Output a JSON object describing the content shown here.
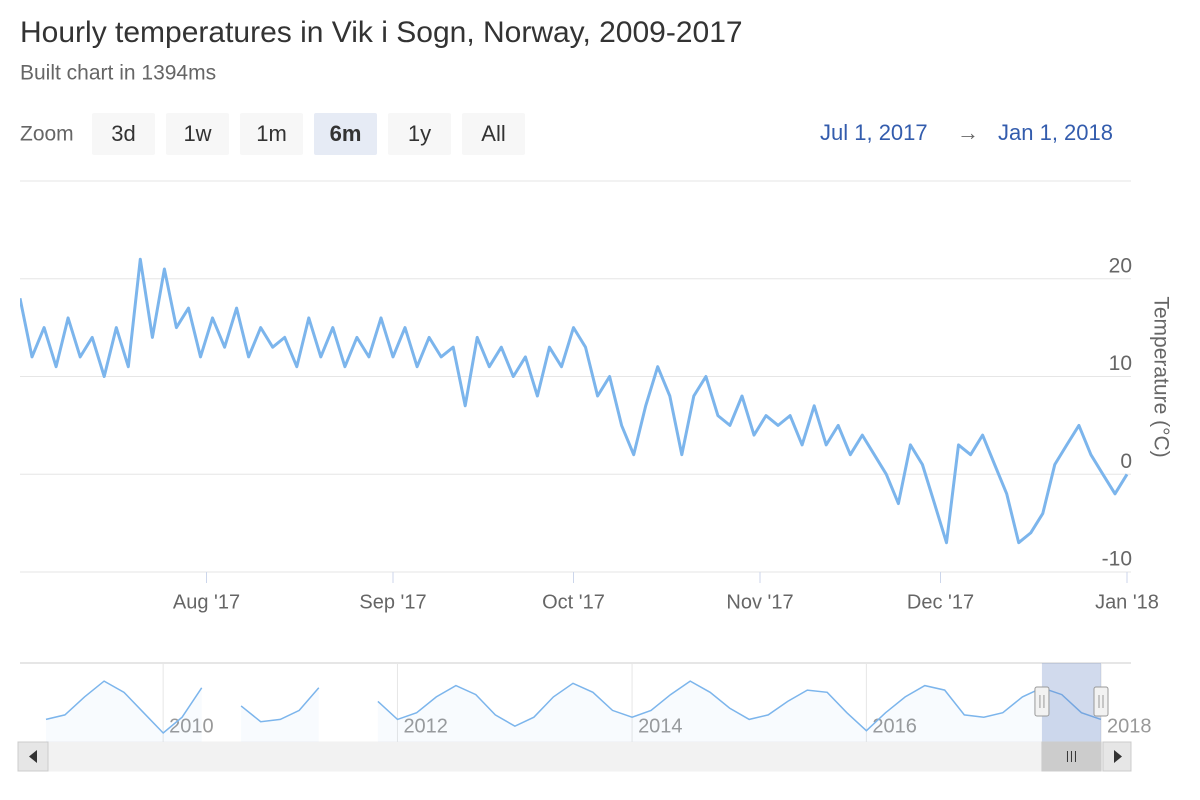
{
  "chart_data": {
    "type": "line",
    "title": "Hourly temperatures in Vik i Sogn, Norway, 2009-2017",
    "subtitle": "Built chart in 1394ms",
    "range_selector": {
      "label": "Zoom",
      "buttons": [
        "3d",
        "1w",
        "1m",
        "6m",
        "1y",
        "All"
      ],
      "selected": 3,
      "from": "Jul 1, 2017",
      "separator": "→",
      "to": "Jan 1, 2018"
    },
    "y_axis_title": "Temperature (°C)",
    "color": "#7cb5ec",
    "grid": true,
    "xlim": [
      "2017-07-01",
      "2018-01-01"
    ],
    "xticks": [
      {
        "value": "2017-08-01",
        "label": "Aug '17"
      },
      {
        "value": "2017-09-01",
        "label": "Sep '17"
      },
      {
        "value": "2017-10-01",
        "label": "Oct '17"
      },
      {
        "value": "2017-11-01",
        "label": "Nov '17"
      },
      {
        "value": "2017-12-01",
        "label": "Dec '17"
      },
      {
        "value": "2018-01-01",
        "label": "Jan '18"
      }
    ],
    "ylim": [
      -10,
      30
    ],
    "yticks": [
      -10,
      0,
      10,
      20
    ],
    "x": [
      "2017-07-01",
      "2017-07-03",
      "2017-07-05",
      "2017-07-07",
      "2017-07-09",
      "2017-07-11",
      "2017-07-13",
      "2017-07-15",
      "2017-07-17",
      "2017-07-19",
      "2017-07-21",
      "2017-07-23",
      "2017-07-25",
      "2017-07-27",
      "2017-07-29",
      "2017-07-31",
      "2017-08-02",
      "2017-08-04",
      "2017-08-06",
      "2017-08-08",
      "2017-08-10",
      "2017-08-12",
      "2017-08-14",
      "2017-08-16",
      "2017-08-18",
      "2017-08-20",
      "2017-08-22",
      "2017-08-24",
      "2017-08-26",
      "2017-08-28",
      "2017-08-30",
      "2017-09-01",
      "2017-09-03",
      "2017-09-05",
      "2017-09-07",
      "2017-09-09",
      "2017-09-11",
      "2017-09-13",
      "2017-09-15",
      "2017-09-17",
      "2017-09-19",
      "2017-09-21",
      "2017-09-23",
      "2017-09-25",
      "2017-09-27",
      "2017-09-29",
      "2017-10-01",
      "2017-10-03",
      "2017-10-05",
      "2017-10-07",
      "2017-10-09",
      "2017-10-11",
      "2017-10-13",
      "2017-10-15",
      "2017-10-17",
      "2017-10-19",
      "2017-10-21",
      "2017-10-23",
      "2017-10-25",
      "2017-10-27",
      "2017-10-29",
      "2017-10-31",
      "2017-11-02",
      "2017-11-04",
      "2017-11-06",
      "2017-11-08",
      "2017-11-10",
      "2017-11-12",
      "2017-11-14",
      "2017-11-16",
      "2017-11-18",
      "2017-11-20",
      "2017-11-22",
      "2017-11-24",
      "2017-11-26",
      "2017-11-28",
      "2017-11-30",
      "2017-12-02",
      "2017-12-04",
      "2017-12-06",
      "2017-12-08",
      "2017-12-10",
      "2017-12-12",
      "2017-12-14",
      "2017-12-16",
      "2017-12-18",
      "2017-12-20",
      "2017-12-22",
      "2017-12-24",
      "2017-12-26",
      "2017-12-28",
      "2017-12-30",
      "2018-01-01"
    ],
    "values": [
      18,
      12,
      15,
      11,
      16,
      12,
      14,
      10,
      15,
      11,
      22,
      14,
      21,
      15,
      17,
      12,
      16,
      13,
      17,
      12,
      15,
      13,
      14,
      11,
      16,
      12,
      15,
      11,
      14,
      12,
      16,
      12,
      15,
      11,
      14,
      12,
      13,
      7,
      14,
      11,
      13,
      10,
      12,
      8,
      13,
      11,
      15,
      13,
      8,
      10,
      5,
      2,
      7,
      11,
      8,
      2,
      8,
      10,
      6,
      5,
      8,
      4,
      6,
      5,
      6,
      3,
      7,
      3,
      5,
      2,
      4,
      2,
      0,
      -3,
      3,
      1,
      -3,
      -7,
      3,
      2,
      4,
      1,
      -2,
      -7,
      -6,
      -4,
      1,
      3,
      5,
      2,
      0,
      -2,
      0
    ],
    "navigator": {
      "color": "#7cb5ec",
      "xlim": [
        "2009-01",
        "2018-01"
      ],
      "ylim": [
        -10,
        25
      ],
      "xticks": [
        {
          "value": "2010-01",
          "label": "2010"
        },
        {
          "value": "2012-01",
          "label": "2012"
        },
        {
          "value": "2014-01",
          "label": "2014"
        },
        {
          "value": "2016-01",
          "label": "2016"
        },
        {
          "value": "2018-01",
          "label": "2018"
        }
      ],
      "x": [
        "2009-01",
        "2009-03",
        "2009-05",
        "2009-07",
        "2009-09",
        "2009-11",
        "2010-01",
        "2010-03",
        "2010-05",
        "2010-07",
        "2010-09",
        "2010-11",
        "2011-01",
        "2011-03",
        "2011-05",
        "2011-07",
        "2011-09",
        "2011-11",
        "2012-01",
        "2012-03",
        "2012-05",
        "2012-07",
        "2012-09",
        "2012-11",
        "2013-01",
        "2013-03",
        "2013-05",
        "2013-07",
        "2013-09",
        "2013-11",
        "2014-01",
        "2014-03",
        "2014-05",
        "2014-07",
        "2014-09",
        "2014-11",
        "2015-01",
        "2015-03",
        "2015-05",
        "2015-07",
        "2015-09",
        "2015-11",
        "2016-01",
        "2016-03",
        "2016-05",
        "2016-07",
        "2016-09",
        "2016-11",
        "2017-01",
        "2017-03",
        "2017-05",
        "2017-07",
        "2017-09",
        "2017-11",
        "2018-01"
      ],
      "values": [
        0,
        2,
        10,
        17,
        12,
        3,
        -6,
        1,
        14,
        null,
        6,
        -1,
        0,
        4,
        14,
        null,
        null,
        8,
        0,
        3,
        10,
        15,
        11,
        2,
        -3,
        1,
        10,
        16,
        12,
        4,
        1,
        4,
        11,
        17,
        12,
        5,
        0,
        2,
        8,
        13,
        12,
        3,
        -5,
        3,
        10,
        15,
        13,
        2,
        1,
        3,
        10,
        14,
        11,
        3,
        0
      ]
    }
  }
}
